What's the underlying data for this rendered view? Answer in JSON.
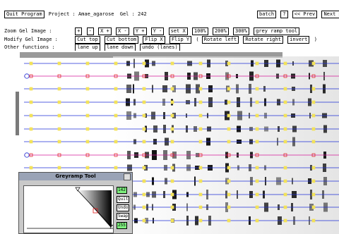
{
  "header": {
    "quit_label": "Quit Program",
    "project_text": "Project : Amae_agarose",
    "gel_text": "Gel : 242",
    "batch_label": "batch",
    "help_label": "?",
    "prev_label": "<< Prev",
    "next_label": "Next >"
  },
  "zoom": {
    "label": "Zoom Gel Image :",
    "buttons": [
      "+",
      "-",
      "X +",
      "X -",
      "Y +",
      "Y -",
      "set X",
      "100%",
      "200%",
      "300%"
    ],
    "grey_ramp_label": "grey ramp tool"
  },
  "modify": {
    "label": "Modify Gel Image :",
    "buttons": [
      "Cut top",
      "Cut bottom",
      "Flip X",
      "Flip Y"
    ],
    "open_paren": "(",
    "rotate_left": "Rotate left",
    "rotate_right": "Rotate right",
    "invert": "invert",
    "close_paren": ")"
  },
  "other": {
    "label": "Other functions :",
    "buttons": [
      "lane up",
      "lane down",
      "undo (lanes)"
    ]
  },
  "greyramp": {
    "title": "Greyramp Tool",
    "top_value": "142",
    "quit_label": "Quit",
    "undo_label": "Undo",
    "swap_label": "Swap",
    "bottom_value": "255"
  },
  "colors": {
    "lane_blue": "#1f2fd6",
    "lane_magenta": "#d41a9a",
    "marker_yellow": "#f2e25a",
    "marker_red": "#e01a1a",
    "value_green": "#7ef07e",
    "title_bar": "#9aa3b6"
  }
}
